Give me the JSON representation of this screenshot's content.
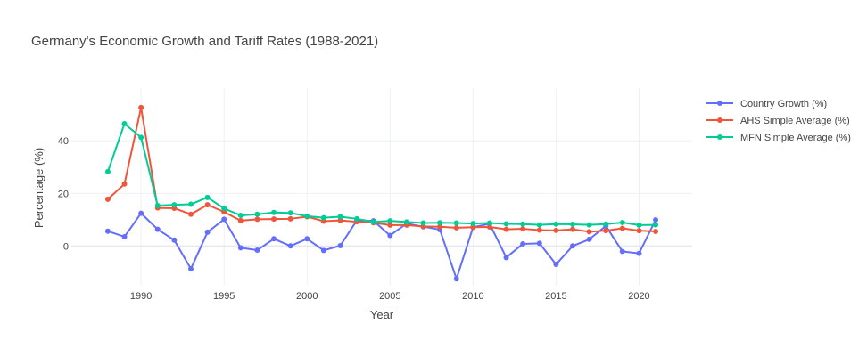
{
  "chart_data": {
    "type": "line",
    "title": "Germany's Economic Growth and Tariff Rates (1988-2021)",
    "xlabel": "Year",
    "ylabel": "Percentage (%)",
    "xlim": [
      1985.8,
      2023.2
    ],
    "ylim": [
      -15,
      60
    ],
    "x_ticks": [
      1990,
      1995,
      2000,
      2005,
      2010,
      2015,
      2020
    ],
    "y_ticks": [
      0,
      20,
      40
    ],
    "grid": true,
    "legend_position": "top-right",
    "x": [
      1988,
      1989,
      1990,
      1991,
      1992,
      1993,
      1994,
      1995,
      1996,
      1997,
      1998,
      1999,
      2000,
      2001,
      2002,
      2003,
      2004,
      2005,
      2006,
      2007,
      2008,
      2009,
      2010,
      2011,
      2012,
      2013,
      2014,
      2015,
      2016,
      2017,
      2018,
      2019,
      2020,
      2021
    ],
    "series": [
      {
        "name": "Country Growth (%)",
        "color": "#636efa",
        "values": [
          5.7,
          3.6,
          12.5,
          6.4,
          2.3,
          -8.6,
          5.3,
          10.2,
          -0.6,
          -1.5,
          2.8,
          0.1,
          2.8,
          -1.6,
          0.2,
          9.8,
          9.6,
          4.1,
          8.6,
          7.4,
          6.3,
          -12.4,
          7.2,
          8.5,
          -4.3,
          0.9,
          1.1,
          -6.9,
          0.1,
          2.6,
          7.7,
          -2.0,
          -2.7,
          10.0
        ]
      },
      {
        "name": "AHS Simple Average (%)",
        "color": "#ef553b",
        "values": [
          17.8,
          23.6,
          52.6,
          14.5,
          14.4,
          12.1,
          15.7,
          13.0,
          9.7,
          10.2,
          10.3,
          10.4,
          11.2,
          9.5,
          9.8,
          9.3,
          8.9,
          8.0,
          8.0,
          7.5,
          7.4,
          7.0,
          7.2,
          7.3,
          6.4,
          6.6,
          6.1,
          6.0,
          6.4,
          5.5,
          5.9,
          6.8,
          5.9,
          5.6
        ]
      },
      {
        "name": "MFN Simple Average (%)",
        "color": "#00cc96",
        "values": [
          28.3,
          46.5,
          41.3,
          15.4,
          15.7,
          15.9,
          18.5,
          14.3,
          11.7,
          12.1,
          12.8,
          12.6,
          11.4,
          10.8,
          11.2,
          10.4,
          9.2,
          9.6,
          9.2,
          8.8,
          8.9,
          8.8,
          8.6,
          8.8,
          8.5,
          8.4,
          8.1,
          8.4,
          8.3,
          8.1,
          8.4,
          9.0,
          8.0,
          8.1
        ]
      }
    ]
  }
}
